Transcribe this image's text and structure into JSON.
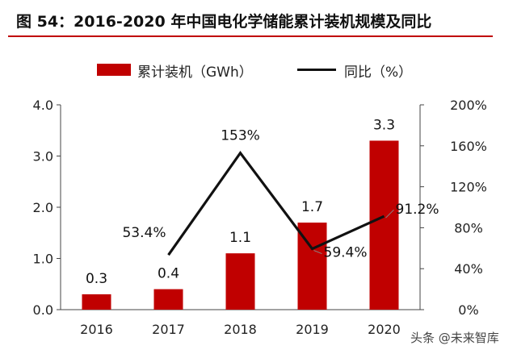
{
  "title": "图 54：2016-2020 年中国电化学储能累计装机规模及同比",
  "legend": {
    "bar_label": "累计装机（GWh）",
    "line_label": "同比（%）"
  },
  "watermark": "头条 @未来智库",
  "colors": {
    "bar": "#c00000",
    "line": "#111111",
    "title_rule": "#c00000"
  },
  "chart_data": {
    "type": "bar+line",
    "categories": [
      "2016",
      "2017",
      "2018",
      "2019",
      "2020"
    ],
    "series": [
      {
        "name": "累计装机（GWh）",
        "type": "bar",
        "axis": "left",
        "values": [
          0.3,
          0.4,
          1.1,
          1.7,
          3.3
        ],
        "labels": [
          "0.3",
          "0.4",
          "1.1",
          "1.7",
          "3.3"
        ]
      },
      {
        "name": "同比（%）",
        "type": "line",
        "axis": "right",
        "values": [
          null,
          53.4,
          153,
          59.4,
          91.2
        ],
        "labels": [
          "",
          "53.4%",
          "153%",
          "59.4%",
          "91.2%"
        ]
      }
    ],
    "left_axis": {
      "ylim": [
        0,
        4
      ],
      "ticks": [
        "0.0",
        "1.0",
        "2.0",
        "3.0",
        "4.0"
      ]
    },
    "right_axis": {
      "ylim": [
        0,
        200
      ],
      "ticks": [
        "0%",
        "40%",
        "80%",
        "120%",
        "160%",
        "200%"
      ]
    },
    "grid": false
  }
}
